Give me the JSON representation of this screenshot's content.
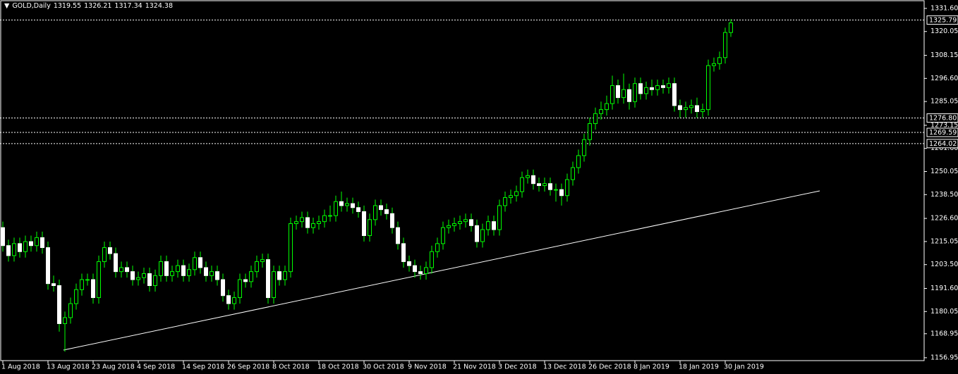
{
  "chart_data": {
    "type": "candlestick",
    "title": "GOLD,Daily",
    "categories": [
      "1 Aug 2018",
      null,
      null,
      null,
      null,
      null,
      null,
      null,
      "13 Aug 2018",
      null,
      null,
      null,
      null,
      null,
      null,
      null,
      "23 Aug 2018",
      null,
      null,
      null,
      null,
      null,
      null,
      null,
      "4 Sep 2018",
      null,
      null,
      null,
      null,
      null,
      null,
      null,
      "14 Sep 2018",
      null,
      null,
      null,
      null,
      null,
      null,
      null,
      "26 Sep 2018",
      null,
      null,
      null,
      null,
      null,
      null,
      null,
      "8 Oct 2018",
      null,
      null,
      null,
      null,
      null,
      null,
      null,
      "18 Oct 2018",
      null,
      null,
      null,
      null,
      null,
      null,
      null,
      "30 Oct 2018",
      null,
      null,
      null,
      null,
      null,
      null,
      null,
      "9 Nov 2018",
      null,
      null,
      null,
      null,
      null,
      null,
      null,
      "21 Nov 2018",
      null,
      null,
      null,
      null,
      null,
      null,
      null,
      "3 Dec 2018",
      null,
      null,
      null,
      null,
      null,
      null,
      null,
      "13 Dec 2018",
      null,
      null,
      null,
      null,
      null,
      null,
      null,
      "26 Dec 2018",
      null,
      null,
      null,
      null,
      null,
      null,
      null,
      "8 Jan 2019",
      null,
      null,
      null,
      null,
      null,
      null,
      null,
      "18 Jan 2019",
      null,
      null,
      null,
      null,
      null,
      null,
      null,
      "30 Jan 2019",
      null
    ],
    "open": [
      1222,
      1213,
      1208,
      1214,
      1210,
      1215,
      1213,
      1217,
      1212,
      1194,
      1193,
      1174,
      1177,
      1184,
      1191,
      1196,
      1196,
      1187,
      1205,
      1212,
      1209,
      1200,
      1202,
      1200,
      1196,
      1197,
      1199,
      1193,
      1198,
      1205,
      1198,
      1200,
      1203,
      1198,
      1201,
      1207,
      1202,
      1198,
      1200,
      1196,
      1188,
      1184,
      1187,
      1196,
      1195,
      1200,
      1205,
      1206,
      1187,
      1200,
      1196,
      1200,
      1224,
      1225,
      1227,
      1222,
      1224,
      1225,
      1228,
      1228,
      1235,
      1233,
      1234,
      1232,
      1230,
      1218,
      1226,
      1233,
      1231,
      1229,
      1222,
      1214,
      1205,
      1203,
      1200,
      1199,
      1202,
      1210,
      1214,
      1222,
      1223,
      1224,
      1225,
      1226,
      1223,
      1215,
      1221,
      1225,
      1221,
      1233,
      1237,
      1238,
      1240,
      1247,
      1248,
      1244,
      1243,
      1244,
      1241,
      1241,
      1238,
      1246,
      1252,
      1258,
      1266,
      1274,
      1279,
      1281,
      1284,
      1293,
      1287,
      1291,
      1285,
      1294,
      1289,
      1292,
      1291,
      1293,
      1292,
      1294,
      1283,
      1281,
      1282,
      1283,
      1280,
      1281,
      1303,
      1304,
      1307,
      1319.55
    ],
    "high": [
      1225,
      1216,
      1217,
      1217,
      1218,
      1218,
      1220,
      1220,
      1215,
      1198,
      1196,
      1180,
      1187,
      1194,
      1199,
      1199,
      1199,
      1208,
      1215,
      1215,
      1212,
      1205,
      1205,
      1203,
      1200,
      1202,
      1202,
      1201,
      1208,
      1208,
      1203,
      1206,
      1206,
      1204,
      1210,
      1210,
      1205,
      1203,
      1203,
      1199,
      1191,
      1190,
      1199,
      1199,
      1203,
      1208,
      1209,
      1209,
      1203,
      1203,
      1203,
      1227,
      1228,
      1230,
      1230,
      1227,
      1228,
      1231,
      1233,
      1238,
      1240,
      1237,
      1237,
      1235,
      1233,
      1229,
      1236,
      1236,
      1234,
      1232,
      1225,
      1217,
      1208,
      1206,
      1203,
      1205,
      1213,
      1217,
      1225,
      1226,
      1227,
      1228,
      1229,
      1229,
      1226,
      1224,
      1228,
      1228,
      1236,
      1240,
      1241,
      1243,
      1250,
      1251,
      1251,
      1247,
      1247,
      1247,
      1244,
      1244,
      1249,
      1255,
      1261,
      1269,
      1277,
      1282,
      1285,
      1288,
      1298,
      1296,
      1299,
      1294,
      1297,
      1297,
      1295,
      1296,
      1296,
      1296,
      1297,
      1297,
      1286,
      1285,
      1286,
      1287,
      1284,
      1306,
      1307,
      1310,
      1322,
      1326.21
    ],
    "low": [
      1210,
      1205,
      1205,
      1207,
      1207,
      1210,
      1210,
      1209,
      1191,
      1190,
      1170,
      1160,
      1174,
      1181,
      1188,
      1193,
      1184,
      1184,
      1202,
      1206,
      1197,
      1197,
      1197,
      1193,
      1193,
      1194,
      1190,
      1190,
      1195,
      1195,
      1195,
      1197,
      1195,
      1195,
      1198,
      1199,
      1195,
      1195,
      1193,
      1185,
      1181,
      1181,
      1184,
      1192,
      1192,
      1197,
      1202,
      1184,
      1184,
      1193,
      1193,
      1197,
      1221,
      1222,
      1219,
      1219,
      1221,
      1222,
      1225,
      1225,
      1230,
      1230,
      1229,
      1227,
      1215,
      1215,
      1223,
      1228,
      1226,
      1219,
      1211,
      1202,
      1200,
      1197,
      1196,
      1196,
      1199,
      1207,
      1211,
      1219,
      1220,
      1221,
      1222,
      1220,
      1212,
      1212,
      1218,
      1218,
      1218,
      1230,
      1234,
      1235,
      1237,
      1244,
      1241,
      1240,
      1240,
      1238,
      1235,
      1233,
      1235,
      1243,
      1249,
      1255,
      1263,
      1271,
      1276,
      1278,
      1281,
      1284,
      1284,
      1281,
      1282,
      1286,
      1286,
      1288,
      1288,
      1289,
      1289,
      1280,
      1277,
      1277,
      1279,
      1277,
      1277,
      1278,
      1300,
      1301,
      1304,
      1317.34
    ],
    "close": [
      1213,
      1208,
      1214,
      1210,
      1215,
      1213,
      1217,
      1212,
      1194,
      1193,
      1174,
      1177,
      1184,
      1191,
      1196,
      1196,
      1187,
      1205,
      1212,
      1209,
      1200,
      1202,
      1200,
      1196,
      1197,
      1199,
      1193,
      1198,
      1205,
      1198,
      1200,
      1203,
      1198,
      1201,
      1207,
      1202,
      1198,
      1200,
      1196,
      1188,
      1184,
      1187,
      1196,
      1195,
      1200,
      1205,
      1206,
      1187,
      1200,
      1196,
      1200,
      1224,
      1225,
      1227,
      1222,
      1224,
      1225,
      1228,
      1228,
      1235,
      1233,
      1234,
      1232,
      1230,
      1218,
      1226,
      1233,
      1231,
      1229,
      1222,
      1214,
      1205,
      1203,
      1200,
      1199,
      1202,
      1210,
      1214,
      1222,
      1223,
      1224,
      1225,
      1226,
      1223,
      1215,
      1221,
      1225,
      1221,
      1233,
      1237,
      1238,
      1240,
      1247,
      1248,
      1244,
      1243,
      1244,
      1241,
      1241,
      1238,
      1246,
      1252,
      1258,
      1266,
      1274,
      1279,
      1281,
      1284,
      1293,
      1287,
      1291,
      1285,
      1294,
      1289,
      1292,
      1291,
      1293,
      1292,
      1294,
      1283,
      1281,
      1282,
      1283,
      1280,
      1281,
      1303,
      1304,
      1307,
      1319.55,
      1324.38
    ],
    "ylim": [
      1155.5,
      1335.8
    ],
    "yticks": [
      {
        "value": 1331.6,
        "label": "1331.60"
      },
      1320.05,
      1308.15,
      {
        "value": 1296.6,
        "label": "1296.60"
      },
      1285.05,
      1273.15,
      {
        "value": 1261.6,
        "label": "1261.60"
      },
      1250.05,
      {
        "value": 1238.5,
        "label": "1238.50"
      },
      {
        "value": 1226.6,
        "label": "1226.60"
      },
      1215.05,
      {
        "value": 1203.5,
        "label": "1203.50"
      },
      {
        "value": 1191.6,
        "label": "1191.60"
      },
      1180.05,
      1168.95,
      1156.95
    ],
    "levels": [
      1325.79,
      {
        "value": 1276.8,
        "label": "1276.80"
      },
      1269.59,
      1264.02
    ],
    "grid": false,
    "colors": {
      "wick": "#00ff00",
      "bull_body": "#000000",
      "bull_edge": "#00ff00",
      "bear_body": "#ffffff",
      "bear_edge": "#ffffff",
      "level": "#ffffff",
      "axis": "#ffffff"
    }
  }
}
